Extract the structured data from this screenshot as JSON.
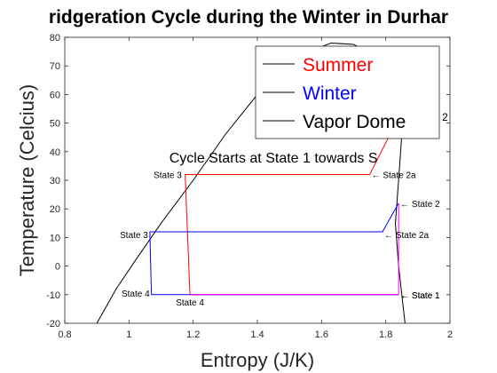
{
  "chart_data": {
    "type": "line",
    "title": "ridgeration Cycle during the Winter in Durhar",
    "xlabel": "Entropy (J/K)",
    "ylabel": "Temperature (Celcius)",
    "xlim": [
      0.8,
      2.0
    ],
    "ylim": [
      -20,
      80
    ],
    "xticks": [
      0.8,
      1,
      1.2,
      1.4,
      1.6,
      1.8,
      2
    ],
    "xtick_labels": [
      "0.8",
      "1",
      "1.2",
      "1.4",
      "1.6",
      "1.8",
      "2"
    ],
    "yticks": [
      -20,
      -10,
      0,
      10,
      20,
      30,
      40,
      50,
      60,
      70,
      80
    ],
    "ytick_labels": [
      "-20",
      "-10",
      "0",
      "10",
      "20",
      "30",
      "40",
      "50",
      "60",
      "70",
      "80"
    ],
    "grid": false,
    "legend_position": "top-right",
    "series": [
      {
        "name": "Summer",
        "color": "#ff0000",
        "points": [
          [
            1.84,
            -10
          ],
          [
            1.19,
            -10
          ],
          [
            1.175,
            32
          ],
          [
            1.75,
            32
          ],
          [
            1.84,
            52
          ]
        ]
      },
      {
        "name": "Winter",
        "color": "#0000ff",
        "points": [
          [
            1.84,
            -10
          ],
          [
            1.07,
            -10
          ],
          [
            1.065,
            12
          ],
          [
            1.79,
            12
          ],
          [
            1.84,
            22
          ]
        ]
      },
      {
        "name": "Vapor Dome",
        "color": "#000000",
        "points": [
          [
            0.9,
            -20
          ],
          [
            0.96,
            -8
          ],
          [
            1.02,
            2
          ],
          [
            1.1,
            15
          ],
          [
            1.2,
            30
          ],
          [
            1.3,
            46
          ],
          [
            1.4,
            60
          ],
          [
            1.48,
            69
          ],
          [
            1.56,
            75
          ],
          [
            1.63,
            78
          ],
          [
            1.7,
            77.5
          ],
          [
            1.76,
            74
          ],
          [
            1.81,
            66
          ],
          [
            1.84,
            56
          ],
          [
            1.85,
            46
          ],
          [
            1.84,
            30
          ],
          [
            1.83,
            15
          ],
          [
            1.84,
            0
          ],
          [
            1.85,
            -10
          ],
          [
            1.86,
            -20
          ]
        ]
      },
      {
        "name": "",
        "color": "#ff00ff",
        "points": [
          [
            1.19,
            -10
          ],
          [
            1.84,
            -10
          ],
          [
            1.84,
            22
          ]
        ]
      }
    ],
    "annotations": [
      {
        "text": "Cycle Starts at State 1 towards S",
        "x": 1.12,
        "y": 38,
        "size": "large",
        "anchor": "start"
      },
      {
        "text": "State 3",
        "x": 1.17,
        "y": 32,
        "anchor": "end"
      },
      {
        "text": "← State 2a",
        "x": 1.75,
        "y": 32,
        "anchor": "start"
      },
      {
        "text": "← State 2",
        "x": 1.84,
        "y": 22,
        "anchor": "start"
      },
      {
        "text": "State 3",
        "x": 1.065,
        "y": 11,
        "anchor": "end"
      },
      {
        "text": "← State 2a",
        "x": 1.79,
        "y": 11,
        "anchor": "start"
      },
      {
        "text": "State 4",
        "x": 1.07,
        "y": -9.5,
        "anchor": "end"
      },
      {
        "text": "State 4",
        "x": 1.19,
        "y": -12.5,
        "anchor": "middle"
      },
      {
        "text": "← State 1",
        "x": 1.84,
        "y": -10,
        "anchor": "start"
      },
      {
        "text": "← State 1",
        "x": 1.84,
        "y": -10,
        "anchor": "start"
      },
      {
        "text": "2",
        "x": 1.97,
        "y": 52,
        "anchor": "start",
        "size": "medium"
      }
    ]
  }
}
